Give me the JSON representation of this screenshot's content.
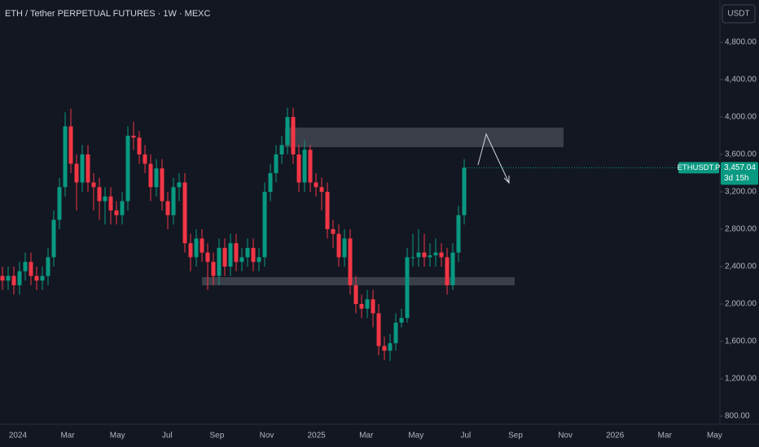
{
  "chart_data": {
    "type": "candlestick",
    "title": "ETH / Tether PERPETUAL FUTURES · 1W · MEXC",
    "currency": "USDT",
    "up_color": "#089981",
    "down_color": "#f23645",
    "grid": false,
    "ylim": [
      713,
      5252
    ],
    "yticks": [
      {
        "value": 800,
        "label": "800.00"
      },
      {
        "value": 1200,
        "label": "1,200.00"
      },
      {
        "value": 1600,
        "label": "1,600.00"
      },
      {
        "value": 2000,
        "label": "2,000.00"
      },
      {
        "value": 2400,
        "label": "2,400.00"
      },
      {
        "value": 2800,
        "label": "2,800.00"
      },
      {
        "value": 3200,
        "label": "3,200.00"
      },
      {
        "value": 3600,
        "label": "3,600.00"
      },
      {
        "value": 4000,
        "label": "4,000.00"
      },
      {
        "value": 4400,
        "label": "4,400.00"
      },
      {
        "value": 4800,
        "label": "4,800.00"
      }
    ],
    "xticks": [
      "2024",
      "Mar",
      "May",
      "Jul",
      "Sep",
      "Nov",
      "2025",
      "Mar",
      "May",
      "Jul",
      "Sep",
      "Nov",
      "2026",
      "Mar",
      "May"
    ],
    "open": [
      2300,
      2250,
      2300,
      2200,
      2350,
      2450,
      2300,
      2250,
      2300,
      2500,
      2900,
      3250,
      3900,
      3500,
      3300,
      3600,
      3300,
      3250,
      3100,
      3150,
      3000,
      2950,
      3100,
      3800,
      3780,
      3600,
      3500,
      3250,
      3450,
      3100,
      2950,
      3250,
      3300,
      2650,
      2500,
      2700,
      2550,
      2450,
      2300,
      2600,
      2400,
      2650,
      2450,
      2500,
      2600,
      2450,
      2500,
      3200,
      3400,
      3600,
      3700,
      4000,
      3600,
      3300,
      3650,
      3300,
      3250,
      3200,
      2800,
      2750,
      2500,
      2700,
      2200,
      2000,
      1950,
      2050,
      1900,
      1550,
      1500,
      1580,
      1800,
      1850,
      2500,
      2500,
      2550,
      2500,
      2520,
      2550,
      2500,
      2200,
      2550,
      2950
    ],
    "high": [
      2400,
      2400,
      2400,
      2450,
      2550,
      2550,
      2400,
      2400,
      2600,
      3000,
      3350,
      4050,
      4090,
      3600,
      3700,
      3700,
      3400,
      3350,
      3250,
      3250,
      3100,
      3200,
      3900,
      3950,
      3850,
      3700,
      3600,
      3550,
      3550,
      3200,
      3350,
      3400,
      3400,
      2750,
      2800,
      2800,
      2650,
      2550,
      2700,
      2700,
      2750,
      2750,
      2600,
      2700,
      2700,
      2600,
      3300,
      3500,
      3700,
      3800,
      4100,
      4100,
      3700,
      3750,
      3700,
      3400,
      3350,
      3300,
      2900,
      2850,
      2800,
      2800,
      2300,
      2100,
      2150,
      2150,
      2000,
      1650,
      1680,
      1900,
      1950,
      2600,
      2750,
      2800,
      2750,
      2650,
      2700,
      2650,
      2600,
      2650,
      3050,
      3550
    ],
    "low": [
      2150,
      2150,
      2100,
      2100,
      2250,
      2200,
      2150,
      2150,
      2200,
      2400,
      2800,
      3150,
      3400,
      3000,
      3200,
      3200,
      3000,
      2900,
      2850,
      2850,
      2850,
      2850,
      3000,
      3650,
      3500,
      3400,
      3100,
      3150,
      3000,
      2800,
      2850,
      3100,
      2550,
      2350,
      2400,
      2450,
      2150,
      2200,
      2200,
      2300,
      2300,
      2350,
      2350,
      2400,
      2350,
      2350,
      2400,
      3100,
      3300,
      3500,
      3600,
      3500,
      3200,
      3200,
      3200,
      3150,
      3000,
      2700,
      2600,
      2400,
      2400,
      2100,
      1900,
      1850,
      1850,
      1750,
      1450,
      1400,
      1390,
      1500,
      1750,
      1800,
      2400,
      2400,
      2400,
      2400,
      2400,
      2400,
      2100,
      2150,
      2450,
      2850
    ],
    "close": [
      2250,
      2300,
      2200,
      2350,
      2450,
      2300,
      2250,
      2300,
      2500,
      2900,
      3250,
      3900,
      3500,
      3300,
      3600,
      3300,
      3250,
      3100,
      3150,
      3000,
      2950,
      3100,
      3800,
      3780,
      3600,
      3500,
      3250,
      3450,
      3100,
      2950,
      3250,
      3300,
      2650,
      2500,
      2700,
      2550,
      2450,
      2300,
      2600,
      2400,
      2650,
      2450,
      2500,
      2600,
      2450,
      2500,
      3200,
      3400,
      3600,
      3700,
      4000,
      3600,
      3300,
      3650,
      3300,
      3250,
      3200,
      2800,
      2750,
      2500,
      2700,
      2200,
      2000,
      1950,
      2050,
      1900,
      1550,
      1500,
      1580,
      1800,
      1850,
      2500,
      2500,
      2550,
      2500,
      2520,
      2550,
      2500,
      2200,
      2550,
      2950,
      3457.04
    ],
    "last_price": {
      "symbol": "ETHUSDT.P",
      "price": {
        "value": 3457.04,
        "label": "3,457.04"
      },
      "countdown": "3d 15h"
    }
  }
}
